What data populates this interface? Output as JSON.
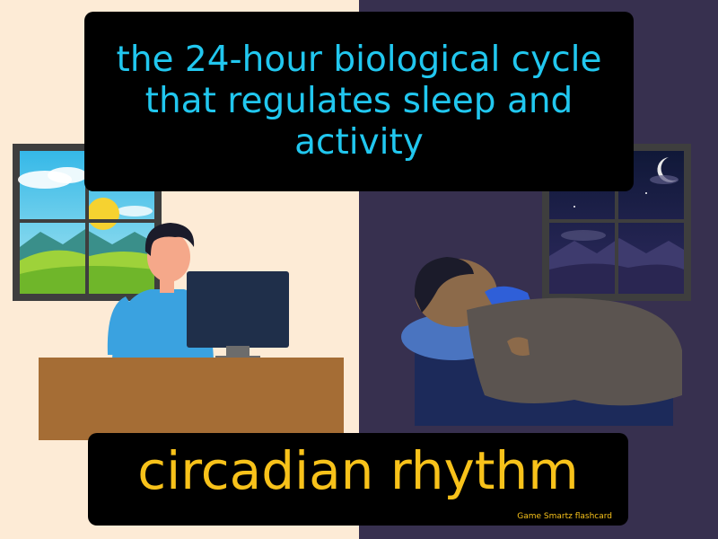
{
  "definition": "the 24-hour biological cycle that regulates sleep and activity",
  "term": "circadian rhythm",
  "brand": "Game  Smartz  flashcard",
  "colors": {
    "day_background": "#fdebd6",
    "night_background": "#37304f",
    "definition_text": "#21c7ef",
    "term_text": "#f8c21a"
  }
}
